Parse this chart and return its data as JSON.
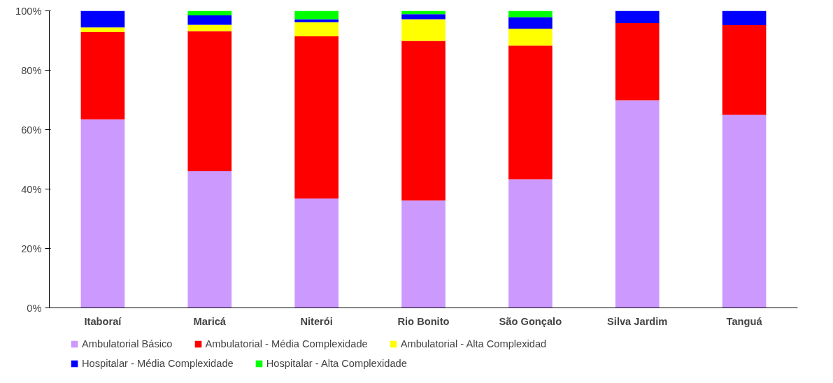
{
  "chart_data": {
    "type": "bar",
    "stacked": true,
    "categories": [
      "Itaboraí",
      "Maricá",
      "Niterói",
      "Rio Bonito",
      "São Gonçalo",
      "Silva Jardim",
      "Tanguá"
    ],
    "series": [
      {
        "name": "Ambulatorial Básico",
        "color": "#cc99ff",
        "values": [
          63.5,
          46,
          36.8,
          36.2,
          43.3,
          69.9,
          65
        ]
      },
      {
        "name": "Ambulatorial - Média Complexidade",
        "color": "#ff0000",
        "values": [
          29.3,
          47.2,
          54.6,
          53.7,
          45,
          26,
          30.2
        ]
      },
      {
        "name": "Ambulatorial - Alta Complexidad",
        "color": "#ffff00",
        "values": [
          1.6,
          2.1,
          4.8,
          7.3,
          5.7,
          0,
          0
        ]
      },
      {
        "name": "Hospitalar - Média Complexidade",
        "color": "#0000ff",
        "values": [
          5.6,
          3.2,
          1,
          1.7,
          3.9,
          4.1,
          4.8
        ]
      },
      {
        "name": "Hospitalar - Alta Complexidade",
        "color": "#00ff00",
        "values": [
          0,
          1.5,
          2.8,
          1.1,
          2.1,
          0,
          0
        ]
      }
    ],
    "ylim": [
      0,
      100
    ],
    "yticks": [
      {
        "value": 0,
        "label": "0%"
      },
      {
        "value": 20,
        "label": "20%"
      },
      {
        "value": 40,
        "label": "40%"
      },
      {
        "value": 60,
        "label": "60%"
      },
      {
        "value": 80,
        "label": "80%"
      },
      {
        "value": 100,
        "label": "100%"
      }
    ],
    "grid": false,
    "legend": "bottom"
  }
}
